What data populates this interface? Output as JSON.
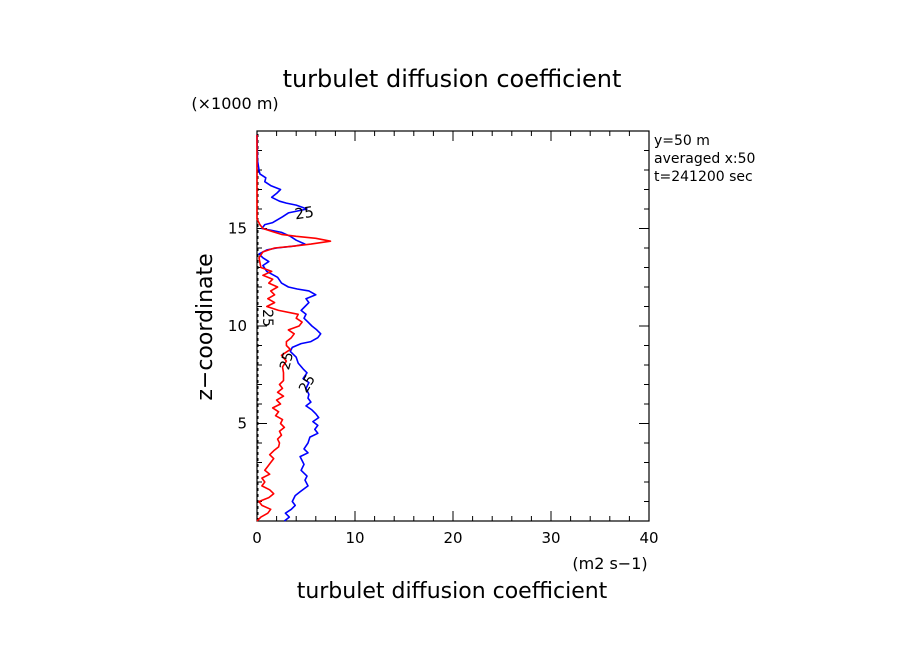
{
  "chart_data": {
    "type": "line",
    "title": "turbulet diffusion coefficient",
    "xlabel": "turbulet diffusion coefficient",
    "xunit": "(m2 s−1)",
    "ylabel": "z−coordinate",
    "yunit": "(×1000 m)",
    "xlim": [
      0,
      40
    ],
    "ylim": [
      0,
      20
    ],
    "x_ticks": [
      "0",
      "10",
      "20",
      "30",
      "40"
    ],
    "y_ticks": [
      "5",
      "10",
      "15"
    ],
    "x_tick_values": [
      0,
      10,
      20,
      30,
      40
    ],
    "y_tick_values": [
      5,
      10,
      15
    ],
    "grid": false,
    "annotations": [
      "y=50 m",
      "averaged  x:50",
      "t=241200 sec"
    ],
    "contour_labels": [
      "25",
      "25",
      "25",
      "25"
    ],
    "series": [
      {
        "color": "#0000ff",
        "points": [
          [
            2.8,
            0.0
          ],
          [
            3.3,
            0.2
          ],
          [
            2.9,
            0.4
          ],
          [
            3.5,
            0.6
          ],
          [
            3.9,
            0.8
          ],
          [
            3.6,
            1.0
          ],
          [
            3.9,
            1.3
          ],
          [
            4.4,
            1.5
          ],
          [
            5.2,
            1.8
          ],
          [
            4.9,
            2.1
          ],
          [
            5.1,
            2.3
          ],
          [
            4.5,
            2.6
          ],
          [
            4.8,
            2.9
          ],
          [
            4.4,
            3.3
          ],
          [
            5.2,
            3.5
          ],
          [
            4.8,
            3.7
          ],
          [
            5.2,
            4.0
          ],
          [
            5.4,
            4.3
          ],
          [
            6.2,
            4.5
          ],
          [
            5.9,
            4.7
          ],
          [
            6.2,
            4.9
          ],
          [
            5.7,
            5.1
          ],
          [
            6.3,
            5.3
          ],
          [
            6.0,
            5.5
          ],
          [
            5.6,
            5.7
          ],
          [
            5.0,
            5.9
          ],
          [
            5.5,
            6.1
          ],
          [
            5.2,
            6.3
          ],
          [
            5.3,
            6.5
          ],
          [
            5.0,
            6.8
          ],
          [
            5.3,
            7.1
          ],
          [
            4.7,
            7.3
          ],
          [
            5.1,
            7.6
          ],
          [
            4.7,
            7.8
          ],
          [
            4.2,
            8.1
          ],
          [
            4.0,
            8.4
          ],
          [
            3.4,
            8.7
          ],
          [
            3.6,
            8.9
          ],
          [
            4.5,
            9.1
          ],
          [
            5.5,
            9.2
          ],
          [
            6.2,
            9.4
          ],
          [
            6.5,
            9.6
          ],
          [
            6.1,
            9.8
          ],
          [
            5.6,
            10.0
          ],
          [
            5.2,
            10.2
          ],
          [
            4.8,
            10.4
          ],
          [
            5.0,
            10.6
          ],
          [
            4.5,
            10.8
          ],
          [
            4.9,
            11.0
          ],
          [
            5.3,
            11.2
          ],
          [
            5.0,
            11.4
          ],
          [
            6.0,
            11.6
          ],
          [
            5.3,
            11.8
          ],
          [
            4.1,
            11.9
          ],
          [
            3.2,
            12.0
          ],
          [
            2.5,
            12.2
          ],
          [
            2.1,
            12.5
          ],
          [
            1.0,
            12.8
          ],
          [
            0.6,
            13.1
          ],
          [
            1.2,
            13.3
          ],
          [
            0.6,
            13.5
          ],
          [
            0.2,
            13.7
          ],
          [
            1.0,
            13.9
          ],
          [
            2.0,
            14.0
          ],
          [
            3.8,
            14.1
          ],
          [
            4.9,
            14.2
          ],
          [
            4.0,
            14.4
          ],
          [
            3.4,
            14.6
          ],
          [
            2.5,
            14.8
          ],
          [
            1.5,
            14.9
          ],
          [
            0.5,
            15.0
          ],
          [
            0.8,
            15.2
          ],
          [
            1.6,
            15.3
          ],
          [
            2.6,
            15.6
          ],
          [
            3.2,
            15.8
          ],
          [
            5.1,
            16.0
          ],
          [
            4.0,
            16.2
          ],
          [
            3.0,
            16.3
          ],
          [
            2.3,
            16.4
          ],
          [
            1.5,
            16.6
          ],
          [
            2.0,
            16.8
          ],
          [
            2.4,
            17.0
          ],
          [
            1.4,
            17.2
          ],
          [
            0.8,
            17.4
          ],
          [
            0.9,
            17.6
          ],
          [
            0.3,
            17.8
          ],
          [
            0.2,
            18.0
          ],
          [
            0.05,
            18.5
          ],
          [
            0.0,
            19.8
          ]
        ]
      },
      {
        "color": "#ff0000",
        "points": [
          [
            0.0,
            0.0
          ],
          [
            0.4,
            0.2
          ],
          [
            1.1,
            0.4
          ],
          [
            1.4,
            0.6
          ],
          [
            0.5,
            0.8
          ],
          [
            0.2,
            1.0
          ],
          [
            1.2,
            1.2
          ],
          [
            1.7,
            1.4
          ],
          [
            1.3,
            1.6
          ],
          [
            0.5,
            1.8
          ],
          [
            0.8,
            2.0
          ],
          [
            0.5,
            2.2
          ],
          [
            1.3,
            2.4
          ],
          [
            0.8,
            2.6
          ],
          [
            1.1,
            2.8
          ],
          [
            1.4,
            3.0
          ],
          [
            1.7,
            3.2
          ],
          [
            1.3,
            3.4
          ],
          [
            1.7,
            3.6
          ],
          [
            2.2,
            3.8
          ],
          [
            2.3,
            4.0
          ],
          [
            2.1,
            4.2
          ],
          [
            2.5,
            4.4
          ],
          [
            2.3,
            4.6
          ],
          [
            2.8,
            4.8
          ],
          [
            2.4,
            5.0
          ],
          [
            2.6,
            5.2
          ],
          [
            1.9,
            5.4
          ],
          [
            2.2,
            5.6
          ],
          [
            1.6,
            5.8
          ],
          [
            2.4,
            6.0
          ],
          [
            2.0,
            6.2
          ],
          [
            2.7,
            6.4
          ],
          [
            2.1,
            6.6
          ],
          [
            2.6,
            6.8
          ],
          [
            2.3,
            7.0
          ],
          [
            2.7,
            7.2
          ],
          [
            2.7,
            7.6
          ],
          [
            2.6,
            7.9
          ],
          [
            3.0,
            8.2
          ],
          [
            2.5,
            8.5
          ],
          [
            3.4,
            8.8
          ],
          [
            3.0,
            9.0
          ],
          [
            3.0,
            9.2
          ],
          [
            3.5,
            9.4
          ],
          [
            3.8,
            9.6
          ],
          [
            3.2,
            9.8
          ],
          [
            4.3,
            10.0
          ],
          [
            4.6,
            10.2
          ],
          [
            4.0,
            10.4
          ],
          [
            4.2,
            10.6
          ],
          [
            2.2,
            10.8
          ],
          [
            1.0,
            11.0
          ],
          [
            1.8,
            11.2
          ],
          [
            1.1,
            11.4
          ],
          [
            1.8,
            11.6
          ],
          [
            1.4,
            11.8
          ],
          [
            2.1,
            12.0
          ],
          [
            1.2,
            12.2
          ],
          [
            1.6,
            12.4
          ],
          [
            0.6,
            12.6
          ],
          [
            1.5,
            12.8
          ],
          [
            0.4,
            13.0
          ],
          [
            0.2,
            13.5
          ],
          [
            0.6,
            13.8
          ],
          [
            1.8,
            14.0
          ],
          [
            3.8,
            14.1
          ],
          [
            5.5,
            14.2
          ],
          [
            7.5,
            14.35
          ],
          [
            6.0,
            14.5
          ],
          [
            4.0,
            14.6
          ],
          [
            2.5,
            14.7
          ],
          [
            1.5,
            14.85
          ],
          [
            0.6,
            15.0
          ],
          [
            0.3,
            15.2
          ],
          [
            0.0,
            15.5
          ],
          [
            0.0,
            19.8
          ]
        ]
      }
    ]
  },
  "colors": {
    "series_blue": "#0000ff",
    "series_red": "#ff0000",
    "axis": "#000000"
  }
}
